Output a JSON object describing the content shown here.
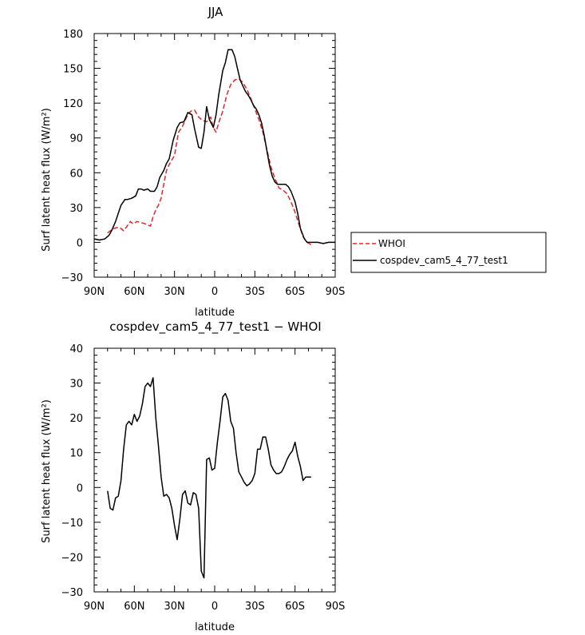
{
  "chart_data": [
    {
      "type": "line",
      "title": "JJA",
      "xlabel": "latitude",
      "ylabel": "Surf latent heat flux (W/m²)",
      "xlim": [
        90,
        -90
      ],
      "ylim": [
        -30,
        180
      ],
      "xticks": [
        90,
        60,
        30,
        0,
        -30,
        -60,
        -90
      ],
      "xtick_labels": [
        "90N",
        "60N",
        "30N",
        "0",
        "30S",
        "60S",
        "90S"
      ],
      "yticks": [
        -30,
        0,
        30,
        60,
        90,
        120,
        150,
        180
      ],
      "ytick_labels": [
        "−30",
        "0",
        "30",
        "60",
        "90",
        "120",
        "150",
        "180"
      ],
      "legend_position": "right",
      "series": [
        {
          "name": "WHOI",
          "color": "#e8242a",
          "dash": "dashed",
          "x": [
            80,
            78,
            75,
            72,
            70,
            68,
            66,
            63,
            61,
            58,
            55,
            52,
            50,
            48,
            46,
            44,
            42,
            40,
            38,
            36,
            34,
            30,
            27,
            24,
            21,
            18,
            15,
            12,
            9,
            6,
            3,
            1,
            -1,
            -3,
            -6,
            -9,
            -12,
            -15,
            -18,
            -21,
            -24,
            -27,
            -30,
            -33,
            -36,
            -39,
            -42,
            -45,
            -48,
            -51,
            -54,
            -57,
            -60,
            -63,
            -66,
            -69,
            -72
          ],
          "y": [
            8,
            10,
            12,
            13,
            12,
            10,
            13,
            18,
            16,
            18,
            17,
            16,
            15,
            14,
            22,
            28,
            32,
            38,
            50,
            62,
            67,
            75,
            95,
            100,
            108,
            113,
            114,
            108,
            105,
            104,
            108,
            99,
            95,
            103,
            113,
            127,
            136,
            140,
            141,
            138,
            132,
            124,
            115,
            106,
            95,
            80,
            65,
            55,
            47,
            45,
            42,
            35,
            26,
            15,
            5,
            0,
            -2
          ]
        },
        {
          "name": "cospdev_cam5_4_77_test1",
          "color": "#000000",
          "dash": "solid",
          "x": [
            90,
            86,
            82,
            79,
            77,
            74,
            72,
            70,
            67,
            65,
            62,
            59,
            57,
            55,
            53,
            50,
            48,
            45,
            43,
            41,
            38,
            36,
            34,
            31,
            28,
            26,
            23,
            20,
            17,
            15,
            12,
            10,
            8,
            6,
            4,
            1,
            -1,
            -3,
            -6,
            -8,
            -10,
            -13,
            -15,
            -17,
            -19,
            -21,
            -23,
            -25,
            -27,
            -29,
            -31,
            -33,
            -35,
            -37,
            -39,
            -41,
            -43,
            -45,
            -47,
            -49,
            -51,
            -53,
            -55,
            -57,
            -60,
            -62,
            -64,
            -67,
            -69,
            -71,
            -73,
            -77,
            -81,
            -85,
            -90
          ],
          "y": [
            3,
            2,
            3,
            6,
            10,
            18,
            25,
            32,
            37,
            37,
            38,
            40,
            46,
            46,
            45,
            46,
            44,
            44,
            48,
            56,
            62,
            68,
            72,
            88,
            99,
            103,
            104,
            112,
            110,
            98,
            82,
            81,
            95,
            117,
            106,
            99,
            110,
            127,
            148,
            155,
            166,
            166,
            160,
            150,
            140,
            135,
            130,
            127,
            123,
            118,
            115,
            110,
            103,
            92,
            79,
            66,
            57,
            52,
            50,
            50,
            50,
            50,
            48,
            44,
            35,
            25,
            12,
            3,
            0,
            0,
            0,
            0,
            -1,
            0,
            0
          ]
        }
      ]
    },
    {
      "type": "line",
      "title": "cospdev_cam5_4_77_test1 − WHOI",
      "xlabel": "latitude",
      "ylabel": "Surf latent heat flux (W/m²)",
      "xlim": [
        90,
        -90
      ],
      "ylim": [
        -30,
        40
      ],
      "xticks": [
        90,
        60,
        30,
        0,
        -30,
        -60,
        -90
      ],
      "xtick_labels": [
        "90N",
        "60N",
        "30N",
        "0",
        "30S",
        "60S",
        "90S"
      ],
      "yticks": [
        -30,
        -20,
        -10,
        0,
        10,
        20,
        30,
        40
      ],
      "ytick_labels": [
        "−30",
        "−20",
        "−10",
        "0",
        "10",
        "20",
        "30",
        "40"
      ],
      "series": [
        {
          "color": "#000000",
          "dash": "solid",
          "x": [
            80,
            78,
            76,
            74,
            72,
            70,
            68,
            66,
            64,
            62,
            60,
            58,
            56,
            54,
            52,
            50,
            48,
            46,
            44,
            42,
            40,
            38,
            36,
            34,
            32,
            30,
            28,
            26,
            24,
            22,
            20,
            18,
            16,
            14,
            12,
            10,
            8,
            6,
            4,
            2,
            0,
            -2,
            -4,
            -6,
            -8,
            -10,
            -12,
            -14,
            -16,
            -18,
            -20,
            -22,
            -24,
            -26,
            -28,
            -30,
            -32,
            -34,
            -36,
            -38,
            -40,
            -42,
            -44,
            -46,
            -48,
            -50,
            -52,
            -54,
            -56,
            -58,
            -60,
            -62,
            -64,
            -66,
            -68,
            -70,
            -72
          ],
          "y": [
            -1,
            -6,
            -6.5,
            -3,
            -2.5,
            2,
            11,
            18,
            19,
            18,
            21,
            19,
            20.5,
            24,
            29,
            30,
            29,
            31.5,
            20,
            12,
            3,
            -2.5,
            -2,
            -3,
            -6,
            -11,
            -15,
            -9,
            -2,
            -1,
            -4.5,
            -5,
            -1.5,
            -2,
            -6,
            -24,
            -26,
            8,
            8.5,
            5,
            5.5,
            13,
            19,
            26,
            27,
            25,
            19,
            17,
            10,
            4.5,
            3,
            1.5,
            0.5,
            1,
            2,
            4,
            11,
            11,
            14.5,
            14.5,
            11,
            6.5,
            5,
            4,
            4,
            4.5,
            6,
            8,
            9.5,
            10.5,
            13,
            9,
            6,
            2,
            3,
            3,
            3
          ]
        }
      ]
    }
  ]
}
